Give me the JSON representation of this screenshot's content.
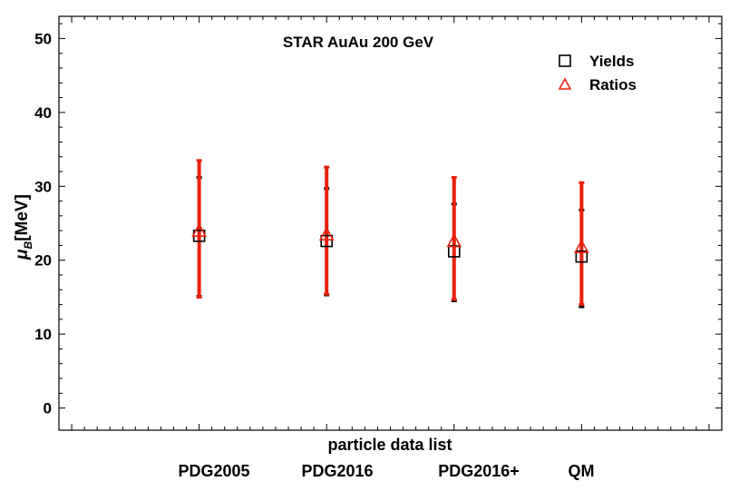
{
  "chart_data": {
    "type": "scatter",
    "title": "STAR AuAu 200 GeV",
    "xlabel": "particle data list",
    "ylabel_main": "μ",
    "ylabel_sub": "B",
    "ylabel_unit": "[MeV]",
    "categories": [
      "PDG2005",
      "PDG2016",
      "PDG2016+",
      "QM"
    ],
    "ylim": [
      -3,
      53
    ],
    "yticks": [
      "0",
      "10",
      "20",
      "30",
      "40",
      "50"
    ],
    "legend_position": "top-right",
    "series": [
      {
        "name": "Yields",
        "marker": "square",
        "color": "#000000",
        "values": [
          23.3,
          22.6,
          21.2,
          20.5
        ],
        "err_low": [
          15.1,
          15.3,
          14.5,
          13.7
        ],
        "err_high": [
          31.2,
          29.7,
          27.6,
          26.8
        ]
      },
      {
        "name": "Ratios",
        "marker": "triangle",
        "color": "#e8200c",
        "values": [
          24.0,
          23.5,
          22.6,
          21.8
        ],
        "err_low": [
          15.0,
          15.4,
          14.7,
          14.0
        ],
        "err_high": [
          33.5,
          32.6,
          31.2,
          30.5
        ]
      }
    ]
  }
}
